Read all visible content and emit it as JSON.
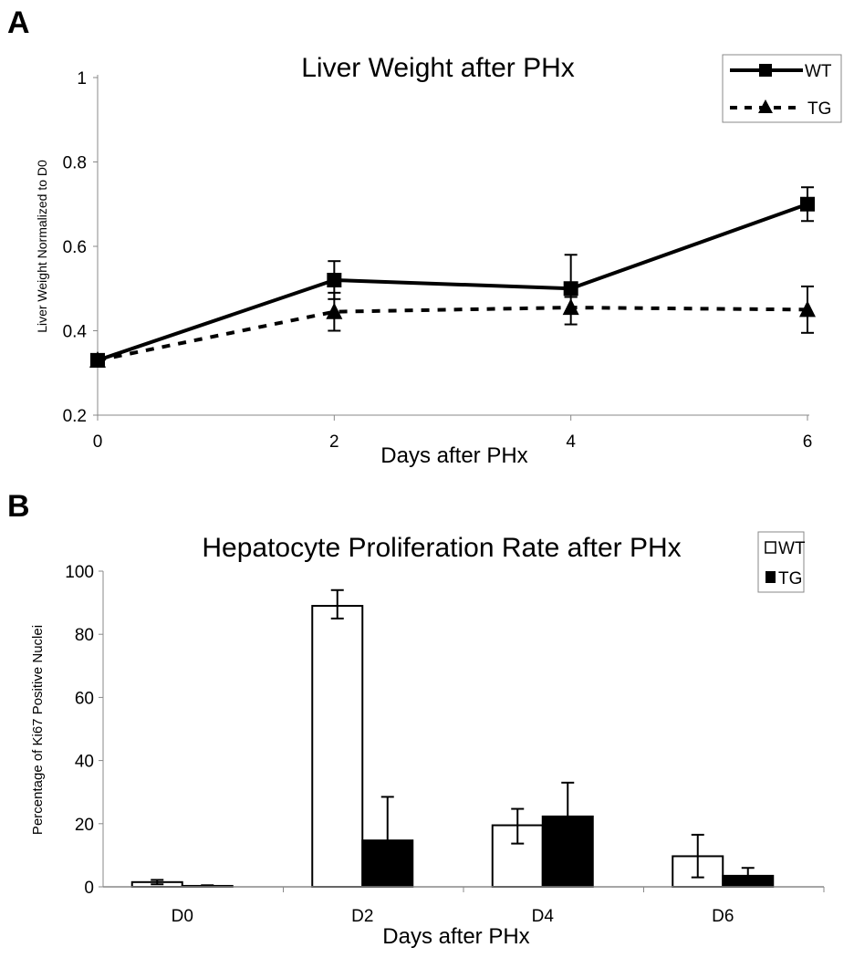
{
  "chart_data": [
    {
      "panel_label": "A",
      "type": "line",
      "title": "Liver Weight after PHx",
      "xlabel": "Days after PHx",
      "ylabel": "Liver Weight Normalized to D0",
      "x": [
        0,
        2,
        4,
        6
      ],
      "xticks": [
        "0",
        "2",
        "4",
        "6"
      ],
      "ylim": [
        0.2,
        1
      ],
      "yticks": [
        "0.2",
        "0.4",
        "0.6",
        "0.8",
        "1"
      ],
      "grid": false,
      "legend_position": "top-right",
      "series": [
        {
          "name": "WT",
          "marker": "square",
          "line": "solid",
          "values": [
            0.33,
            0.52,
            0.5,
            0.7
          ],
          "err_upper": [
            0.33,
            0.565,
            0.58,
            0.74
          ],
          "err_lower": [
            0.33,
            0.475,
            0.48,
            0.66
          ]
        },
        {
          "name": "TG",
          "marker": "triangle",
          "line": "dashed",
          "values": [
            0.33,
            0.445,
            0.455,
            0.45
          ],
          "err_upper": [
            0.33,
            0.49,
            0.48,
            0.505
          ],
          "err_lower": [
            0.33,
            0.4,
            0.415,
            0.395
          ]
        }
      ]
    },
    {
      "panel_label": "B",
      "type": "bar",
      "title": "Hepatocyte Proliferation Rate after PHx",
      "xlabel": "Days after PHx",
      "ylabel": "Percentage of Ki67 Positive Nuclei",
      "categories": [
        "D0",
        "D2",
        "D4",
        "D6"
      ],
      "ylim": [
        0,
        100
      ],
      "yticks": [
        "0",
        "20",
        "40",
        "60",
        "80",
        "100"
      ],
      "grid": false,
      "legend_position": "top-right",
      "series": [
        {
          "name": "WT",
          "color": "#ffffff",
          "values": [
            1.5,
            89,
            19.5,
            9.7
          ],
          "err_upper": [
            2.2,
            94,
            24.7,
            16.5
          ],
          "err_lower": [
            0.8,
            85,
            13.7,
            3
          ]
        },
        {
          "name": "TG",
          "color": "#000000",
          "values": [
            0.3,
            14.7,
            22.3,
            3.5
          ],
          "err_upper": [
            0.5,
            28.5,
            33,
            6
          ],
          "err_lower": [
            0.3,
            14.7,
            22.3,
            3.5
          ]
        }
      ]
    }
  ]
}
